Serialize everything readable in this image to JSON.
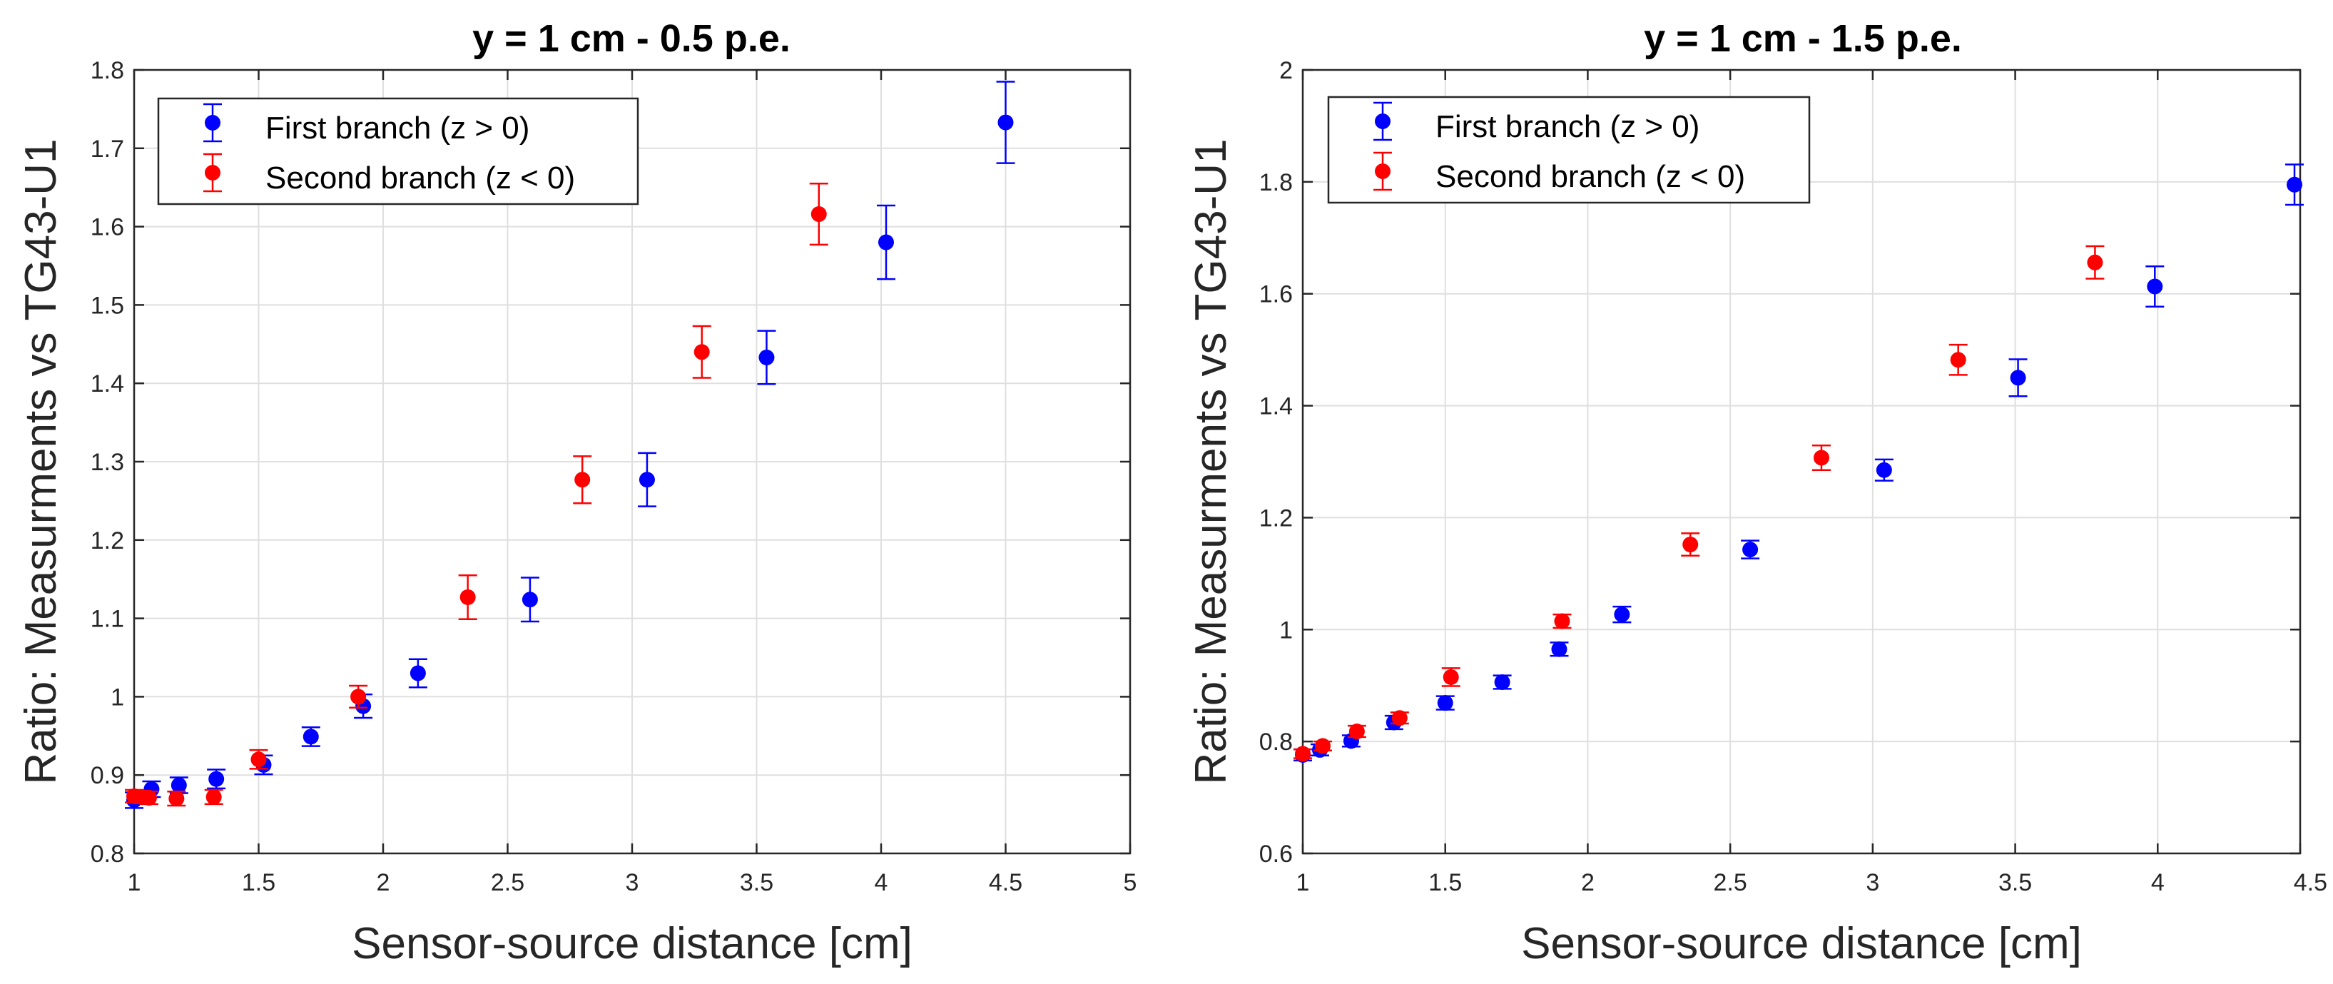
{
  "figure": {
    "chart_data": [
      {
        "type": "scatter",
        "title": "y = 1 cm - 0.5 p.e.",
        "xlabel": "Sensor-source distance [cm]",
        "ylabel": "Ratio: Measurments vs TG43-U1",
        "xlim": [
          1,
          5
        ],
        "ylim": [
          0.8,
          1.8
        ],
        "xticks": [
          1,
          1.5,
          2,
          2.5,
          3,
          3.5,
          4,
          4.5,
          5
        ],
        "xtick_labels": [
          "1",
          "1.5",
          "2",
          "2.5",
          "3",
          "3.5",
          "4",
          "4.5",
          "5"
        ],
        "yticks": [
          0.8,
          0.9,
          1.0,
          1.1,
          1.2,
          1.3,
          1.4,
          1.5,
          1.6,
          1.7,
          1.8
        ],
        "ytick_labels": [
          "0.8",
          "0.9",
          "1",
          "1.1",
          "1.2",
          "1.3",
          "1.4",
          "1.5",
          "1.6",
          "1.7",
          "1.8"
        ],
        "grid": true,
        "legend_position": "top-left",
        "series": [
          {
            "name": "First branch (z > 0)",
            "color": "#0000ff",
            "x": [
              1.0,
              1.07,
              1.18,
              1.33,
              1.52,
              1.71,
              1.92,
              2.14,
              2.59,
              3.06,
              3.54,
              4.02,
              4.5
            ],
            "y": [
              0.868,
              0.882,
              0.887,
              0.895,
              0.913,
              0.949,
              0.988,
              1.03,
              1.124,
              1.277,
              1.433,
              1.58,
              1.733
            ],
            "err": [
              0.01,
              0.01,
              0.01,
              0.012,
              0.012,
              0.012,
              0.015,
              0.018,
              0.028,
              0.034,
              0.034,
              0.047,
              0.052
            ]
          },
          {
            "name": "Second branch (z < 0)",
            "color": "#ff0000",
            "x": [
              1.0,
              1.03,
              1.06,
              1.17,
              1.32,
              1.5,
              1.9,
              2.34,
              2.8,
              3.28,
              3.75
            ],
            "y": [
              0.873,
              0.872,
              0.871,
              0.87,
              0.872,
              0.92,
              1.0,
              1.127,
              1.277,
              1.44,
              1.616
            ],
            "err": [
              0.008,
              0.008,
              0.008,
              0.009,
              0.009,
              0.012,
              0.014,
              0.028,
              0.03,
              0.033,
              0.039
            ]
          }
        ]
      },
      {
        "type": "scatter",
        "title": "y = 1 cm - 1.5 p.e.",
        "xlabel": "Sensor-source distance [cm]",
        "ylabel": "Ratio: Measurments vs TG43-U1",
        "xlim": [
          1,
          4.5
        ],
        "ylim": [
          0.6,
          2.0
        ],
        "xticks": [
          1,
          1.5,
          2,
          2.5,
          3,
          3.5,
          4,
          4.5
        ],
        "xtick_labels": [
          "1",
          "1.5",
          "2",
          "2.5",
          "3",
          "3.5",
          "4",
          "4.5"
        ],
        "yticks": [
          0.6,
          0.8,
          1.0,
          1.2,
          1.4,
          1.6,
          1.8,
          2.0
        ],
        "ytick_labels": [
          "0.6",
          "0.8",
          "1",
          "1.2",
          "1.4",
          "1.6",
          "1.8",
          "2"
        ],
        "grid": true,
        "legend_position": "top-left",
        "series": [
          {
            "name": "First branch (z > 0)",
            "color": "#0000ff",
            "x": [
              1.0,
              1.06,
              1.17,
              1.32,
              1.5,
              1.7,
              1.9,
              2.12,
              2.57,
              3.04,
              3.51,
              3.99,
              4.48
            ],
            "y": [
              0.776,
              0.785,
              0.801,
              0.834,
              0.869,
              0.906,
              0.965,
              1.027,
              1.143,
              1.285,
              1.45,
              1.613,
              1.795
            ],
            "err": [
              0.01,
              0.01,
              0.01,
              0.012,
              0.012,
              0.012,
              0.012,
              0.014,
              0.016,
              0.019,
              0.033,
              0.036,
              0.036
            ]
          },
          {
            "name": "Second branch (z < 0)",
            "color": "#ff0000",
            "x": [
              1.0,
              1.07,
              1.19,
              1.34,
              1.52,
              1.91,
              2.36,
              2.82,
              3.3,
              3.78
            ],
            "y": [
              0.778,
              0.792,
              0.818,
              0.842,
              0.915,
              1.015,
              1.152,
              1.307,
              1.482,
              1.656
            ],
            "err": [
              0.008,
              0.008,
              0.01,
              0.01,
              0.016,
              0.012,
              0.02,
              0.022,
              0.027,
              0.029
            ]
          }
        ]
      }
    ]
  }
}
